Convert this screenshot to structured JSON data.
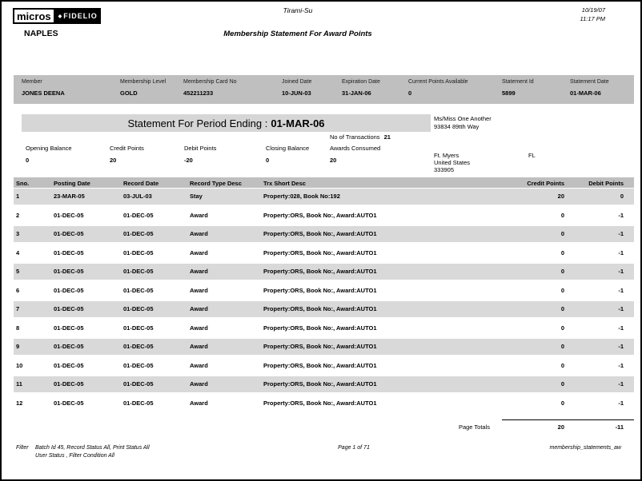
{
  "page": {
    "logo_micros": "micros",
    "logo_fidelio": "FIDELIO",
    "location": "NAPLES",
    "property_title": "Tirami-Su",
    "report_title": "Membership Statement For Award Points",
    "print_date": "10/19/07",
    "print_time": "11:17 PM"
  },
  "member_band": {
    "fields": [
      {
        "label": "Member",
        "value": "JONES DEENA"
      },
      {
        "label": "Membership Level",
        "value": "GOLD"
      },
      {
        "label": "Membership Card No",
        "value": "452211233"
      },
      {
        "label": "Joined Date",
        "value": "10-JUN-03"
      },
      {
        "label": "Expiration Date",
        "value": "31-JAN-06"
      },
      {
        "label": "Current Points Available",
        "value": "0"
      },
      {
        "label": "Statement Id",
        "value": "5899"
      },
      {
        "label": "Statement Date",
        "value": "01-MAR-06"
      }
    ]
  },
  "statement": {
    "period_label": "Statement For Period Ending :",
    "period_value": "01-MAR-06",
    "transactions_label": "No of Transactions",
    "transactions_value": "21",
    "summary": [
      {
        "label": "Opening Balance",
        "value": "0"
      },
      {
        "label": "Credit Points",
        "value": "20"
      },
      {
        "label": "Debit Points",
        "value": "-20"
      },
      {
        "label": "Closing Balance",
        "value": "0"
      },
      {
        "label": "Awards Consumed",
        "value": "20"
      }
    ],
    "address": {
      "name": "Ms/Miss One Another",
      "street": "93834   89tth Way",
      "city": "Ft. Myers",
      "country": "United States",
      "zip": "333905",
      "state": "FL"
    }
  },
  "table": {
    "columns": [
      "Sno.",
      "Posting Date",
      "Record Date",
      "Record Type Desc",
      "Trx Short Desc",
      "Credit Points",
      "Debit Points"
    ],
    "rows": [
      [
        "1",
        "23-MAR-05",
        "03-JUL-03",
        "Stay",
        "Property:028, Book No:192",
        "20",
        "0"
      ],
      [
        "2",
        "01-DEC-05",
        "01-DEC-05",
        "Award",
        "Property:ORS, Book No:, Award:AUTO1",
        "0",
        "-1"
      ],
      [
        "3",
        "01-DEC-05",
        "01-DEC-05",
        "Award",
        "Property:ORS, Book No:, Award:AUTO1",
        "0",
        "-1"
      ],
      [
        "4",
        "01-DEC-05",
        "01-DEC-05",
        "Award",
        "Property:ORS, Book No:, Award:AUTO1",
        "0",
        "-1"
      ],
      [
        "5",
        "01-DEC-05",
        "01-DEC-05",
        "Award",
        "Property:ORS, Book No:, Award:AUTO1",
        "0",
        "-1"
      ],
      [
        "6",
        "01-DEC-05",
        "01-DEC-05",
        "Award",
        "Property:ORS, Book No:, Award:AUTO1",
        "0",
        "-1"
      ],
      [
        "7",
        "01-DEC-05",
        "01-DEC-05",
        "Award",
        "Property:ORS, Book No:, Award:AUTO1",
        "0",
        "-1"
      ],
      [
        "8",
        "01-DEC-05",
        "01-DEC-05",
        "Award",
        "Property:ORS, Book No:, Award:AUTO1",
        "0",
        "-1"
      ],
      [
        "9",
        "01-DEC-05",
        "01-DEC-05",
        "Award",
        "Property:ORS, Book No:, Award:AUTO1",
        "0",
        "-1"
      ],
      [
        "10",
        "01-DEC-05",
        "01-DEC-05",
        "Award",
        "Property:ORS, Book No:, Award:AUTO1",
        "0",
        "-1"
      ],
      [
        "11",
        "01-DEC-05",
        "01-DEC-05",
        "Award",
        "Property:ORS, Book No:, Award:AUTO1",
        "0",
        "-1"
      ],
      [
        "12",
        "01-DEC-05",
        "01-DEC-05",
        "Award",
        "Property:ORS, Book No:, Award:AUTO1",
        "0",
        "-1"
      ]
    ],
    "totals_label": "Page Totals",
    "totals_credit": "20",
    "totals_debit": "-11"
  },
  "footer": {
    "filter_label": "Filter",
    "filter_line1": "Batch Id 45, Record Status All, Print Status All",
    "filter_line2": "User Status , Filter Condition All",
    "page_info": "Page 1 of 71",
    "report_name": "membership_statements_aw"
  },
  "colors": {
    "band_gray": "#bfbfbf",
    "row_stripe_gray": "#d9d9d9",
    "period_band_gray": "#d6d6d6",
    "text": "#000000"
  }
}
